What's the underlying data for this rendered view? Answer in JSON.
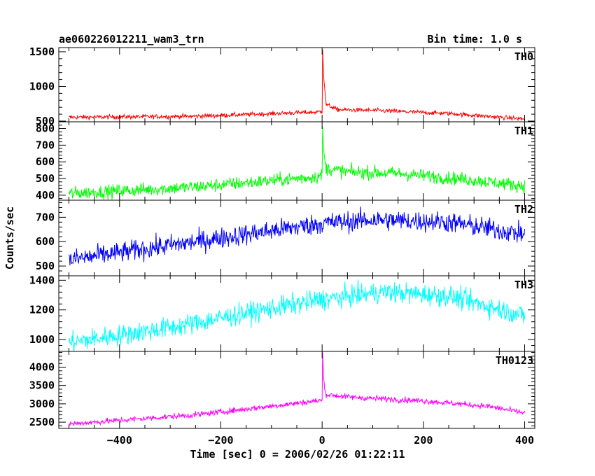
{
  "header": {
    "title": "ae060226012211_wam3_trn",
    "bin_time": "Bin time: 1.0 s"
  },
  "axes": {
    "xlabel": "Time [sec] 0 = 2006/02/26 01:22:11",
    "ylabel": "Counts/sec"
  },
  "chart_data": {
    "type": "line",
    "title": "ae060226012211_wam3_trn",
    "xlabel": "Time [sec] 0 = 2006/02/26 01:22:11",
    "ylabel": "Counts/sec",
    "xlim": [
      -520,
      420
    ],
    "x_ticks": [
      -400,
      -200,
      0,
      200,
      400
    ],
    "x_tick_labels": [
      "−400",
      "−200",
      "0",
      "200",
      "400"
    ],
    "bin_time_s": 1.0,
    "panels": [
      {
        "name": "TH0",
        "color": "#ff0000",
        "ylim": [
          490,
          1560
        ],
        "y_ticks": [
          500,
          1000,
          1500
        ],
        "y_tick_labels": [
          "500",
          "1000",
          "1500"
        ],
        "trend": [
          [
            -500,
            555
          ],
          [
            -250,
            570
          ],
          [
            -10,
            630
          ],
          [
            0,
            640
          ],
          [
            1,
            1550
          ],
          [
            3,
            1150
          ],
          [
            8,
            740
          ],
          [
            30,
            665
          ],
          [
            100,
            655
          ],
          [
            250,
            610
          ],
          [
            400,
            530
          ]
        ],
        "noise": 22
      },
      {
        "name": "TH1",
        "color": "#00ff00",
        "ylim": [
          370,
          840
        ],
        "y_ticks": [
          400,
          500,
          600,
          700,
          800
        ],
        "y_tick_labels": [
          "400",
          "500",
          "600",
          "700",
          "800"
        ],
        "trend": [
          [
            -500,
            410
          ],
          [
            -250,
            450
          ],
          [
            -10,
            510
          ],
          [
            0,
            520
          ],
          [
            1,
            820
          ],
          [
            3,
            650
          ],
          [
            8,
            560
          ],
          [
            50,
            540
          ],
          [
            150,
            530
          ],
          [
            300,
            490
          ],
          [
            400,
            455
          ]
        ],
        "noise": 28
      },
      {
        "name": "TH2",
        "color": "#0000ff",
        "ylim": [
          460,
          770
        ],
        "y_ticks": [
          500,
          600,
          700
        ],
        "y_tick_labels": [
          "500",
          "600",
          "700"
        ],
        "trend": [
          [
            -500,
            525
          ],
          [
            -400,
            555
          ],
          [
            -200,
            615
          ],
          [
            0,
            675
          ],
          [
            100,
            690
          ],
          [
            250,
            680
          ],
          [
            400,
            630
          ]
        ],
        "noise": 30
      },
      {
        "name": "TH3",
        "color": "#00ffff",
        "ylim": [
          920,
          1430
        ],
        "y_ticks": [
          1000,
          1200,
          1400
        ],
        "y_tick_labels": [
          "1000",
          "1200",
          "1400"
        ],
        "trend": [
          [
            -500,
            980
          ],
          [
            -300,
            1080
          ],
          [
            -100,
            1210
          ],
          [
            0,
            1270
          ],
          [
            120,
            1320
          ],
          [
            250,
            1295
          ],
          [
            400,
            1160
          ]
        ],
        "noise": 50
      },
      {
        "name": "TH0123",
        "color": "#ff00ff",
        "ylim": [
          2330,
          4430
        ],
        "y_ticks": [
          2500,
          3000,
          3500,
          4000
        ],
        "y_tick_labels": [
          "2500",
          "3000",
          "3500",
          "4000"
        ],
        "trend": [
          [
            -500,
            2450
          ],
          [
            -250,
            2700
          ],
          [
            -10,
            3080
          ],
          [
            0,
            3100
          ],
          [
            1,
            4380
          ],
          [
            3,
            3650
          ],
          [
            8,
            3250
          ],
          [
            60,
            3180
          ],
          [
            200,
            3080
          ],
          [
            330,
            2930
          ],
          [
            400,
            2750
          ]
        ],
        "noise": 55
      }
    ]
  }
}
